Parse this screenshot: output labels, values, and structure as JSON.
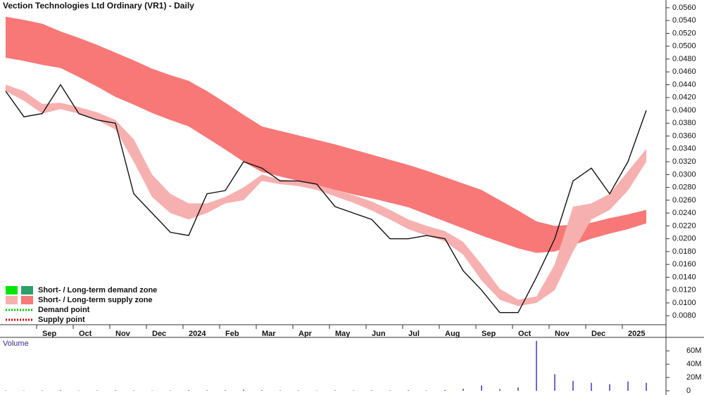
{
  "chart_data": [
    {
      "type": "line",
      "title": "Vection Technologies Ltd Ordinary (VR1) - Daily",
      "categories": [
        null,
        null,
        "Sep",
        null,
        "Oct",
        null,
        "Nov",
        null,
        "Dec",
        null,
        "2024",
        null,
        "Feb",
        null,
        "Mar",
        null,
        "Apr",
        null,
        "May",
        null,
        "Jun",
        null,
        "Jul",
        null,
        "Aug",
        null,
        "Sep",
        null,
        "Oct",
        null,
        "Nov",
        null,
        "Dec",
        null,
        "2025",
        null
      ],
      "values": [
        0.043,
        0.039,
        0.0395,
        0.044,
        0.0395,
        0.0385,
        0.038,
        0.027,
        0.024,
        0.021,
        0.0205,
        0.027,
        0.0275,
        0.032,
        0.031,
        0.029,
        0.029,
        0.0285,
        0.025,
        0.024,
        0.023,
        0.02,
        0.02,
        0.0205,
        0.02,
        0.015,
        0.012,
        0.0085,
        0.0085,
        0.014,
        0.02,
        0.029,
        0.031,
        0.027,
        0.032,
        0.04
      ],
      "color": "#111111",
      "zones": [
        {
          "color": "#f87878",
          "upper": [
            0.0546,
            0.0541,
            0.0535,
            0.0523,
            0.0513,
            0.0502,
            0.049,
            0.0478,
            0.0465,
            0.0455,
            0.0446,
            0.043,
            0.0412,
            0.0393,
            0.0375,
            0.0368,
            0.0361,
            0.0354,
            0.0347,
            0.0339,
            0.0331,
            0.0323,
            0.0315,
            0.0306,
            0.0296,
            0.0286,
            0.0276,
            0.026,
            0.0244,
            0.0227,
            0.022,
            0.0222,
            0.0225,
            0.0232,
            0.0238,
            0.0245
          ],
          "lower": [
            0.0482,
            0.0477,
            0.0471,
            0.0466,
            0.0452,
            0.0437,
            0.0421,
            0.0409,
            0.0396,
            0.0385,
            0.0375,
            0.0357,
            0.0339,
            0.032,
            0.0304,
            0.0297,
            0.029,
            0.0283,
            0.0276,
            0.0269,
            0.0263,
            0.0256,
            0.0249,
            0.0238,
            0.0227,
            0.0216,
            0.0205,
            0.0195,
            0.0185,
            0.0178,
            0.018,
            0.019,
            0.02,
            0.0208,
            0.0215,
            0.0224
          ]
        },
        {
          "color": "#f7b0b0",
          "upper": [
            0.044,
            0.043,
            0.041,
            0.0412,
            0.0405,
            0.0397,
            0.0385,
            0.0355,
            0.03,
            0.027,
            0.0255,
            0.0255,
            0.0265,
            0.028,
            0.03,
            0.0292,
            0.029,
            0.0284,
            0.0276,
            0.0268,
            0.0258,
            0.0245,
            0.023,
            0.022,
            0.0212,
            0.0195,
            0.016,
            0.0122,
            0.0105,
            0.011,
            0.016,
            0.025,
            0.0255,
            0.027,
            0.0305,
            0.034
          ],
          "lower": [
            0.043,
            0.0415,
            0.0395,
            0.0402,
            0.0395,
            0.0385,
            0.037,
            0.032,
            0.0265,
            0.024,
            0.023,
            0.024,
            0.0255,
            0.026,
            0.029,
            0.0285,
            0.0282,
            0.0276,
            0.0266,
            0.0256,
            0.0244,
            0.023,
            0.0215,
            0.0205,
            0.0196,
            0.0175,
            0.0135,
            0.0105,
            0.0095,
            0.01,
            0.012,
            0.018,
            0.023,
            0.0245,
            0.0275,
            0.032
          ]
        }
      ],
      "ylim": [
        0.0066,
        0.0572
      ],
      "yticks": [
        {
          "value": 0.008,
          "label": "0.0080"
        },
        {
          "value": 0.01,
          "label": "0.0100"
        },
        {
          "value": 0.012,
          "label": "0.0120"
        },
        {
          "value": 0.014,
          "label": "0.0140"
        },
        {
          "value": 0.016,
          "label": "0.0160"
        },
        {
          "value": 0.018,
          "label": "0.0180"
        },
        {
          "value": 0.02,
          "label": "0.0200"
        },
        {
          "value": 0.022,
          "label": "0.0220"
        },
        {
          "value": 0.024,
          "label": "0.0240"
        },
        {
          "value": 0.026,
          "label": "0.0260"
        },
        {
          "value": 0.028,
          "label": "0.0280"
        },
        {
          "value": 0.03,
          "label": "0.0300"
        },
        {
          "value": 0.032,
          "label": "0.0320"
        },
        {
          "value": 0.034,
          "label": "0.0340"
        },
        {
          "value": 0.036,
          "label": "0.0360"
        },
        {
          "value": 0.038,
          "label": "0.0380"
        },
        {
          "value": 0.04,
          "label": "0.0400"
        },
        {
          "value": 0.042,
          "label": "0.0420"
        },
        {
          "value": 0.044,
          "label": "0.0440"
        },
        {
          "value": 0.046,
          "label": "0.0460"
        },
        {
          "value": 0.048,
          "label": "0.0480"
        },
        {
          "value": 0.05,
          "label": "0.0500"
        },
        {
          "value": 0.052,
          "label": "0.0520"
        },
        {
          "value": 0.054,
          "label": "0.0540"
        },
        {
          "value": 0.056,
          "label": "0.0560"
        }
      ],
      "legend": [
        {
          "label": "Short- / Long-term demand zone",
          "colors": [
            "#00e600",
            "#2e9e6a"
          ],
          "style": "box"
        },
        {
          "label": "Short- / Long-term supply zone",
          "colors": [
            "#f7b0b0",
            "#f87878"
          ],
          "style": "box"
        },
        {
          "label": "Demand point",
          "colors": [
            "#00c800"
          ],
          "style": "dots"
        },
        {
          "label": "Supply point",
          "colors": [
            "#e00000"
          ],
          "style": "dots"
        }
      ]
    },
    {
      "type": "bar",
      "title": "Volume",
      "values": [
        600000,
        500000,
        700000,
        900000,
        500000,
        600000,
        800000,
        700000,
        500000,
        600000,
        900000,
        700000,
        800000,
        1500000,
        900000,
        700000,
        600000,
        500000,
        700000,
        600000,
        800000,
        700000,
        900000,
        600000,
        1200000,
        3000000,
        8000000,
        2500000,
        5000000,
        75000000,
        25000000,
        15000000,
        12000000,
        10000000,
        14000000,
        12000000
      ],
      "color": "#6b6bd6",
      "ylim": [
        0,
        75000000
      ],
      "yticks": [
        0,
        {
          "value": 20000000,
          "label": "20M"
        },
        {
          "value": 40000000,
          "label": "40M"
        },
        {
          "value": 60000000,
          "label": "60M"
        }
      ]
    }
  ]
}
